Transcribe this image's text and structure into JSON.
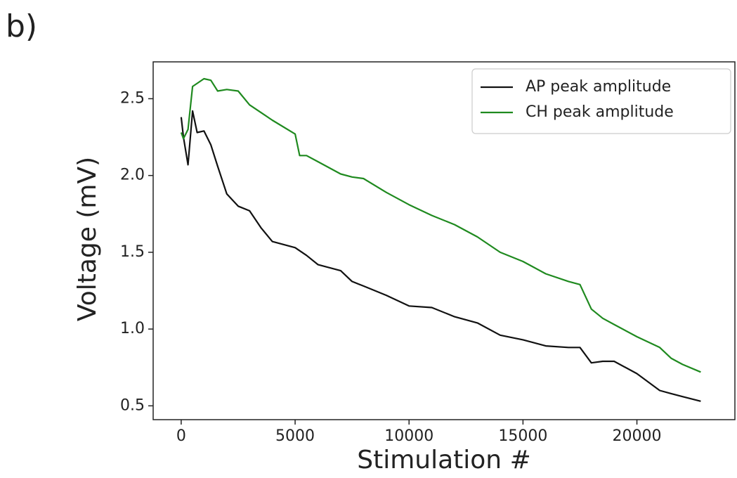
{
  "chart_data": {
    "type": "line",
    "panel_label": "b)",
    "x_label": "Stimulation #",
    "y_label": "Voltage (mV)",
    "x": [
      0,
      100,
      300,
      500,
      700,
      1000,
      1300,
      1600,
      2000,
      2500,
      3000,
      3500,
      4000,
      5000,
      5200,
      5500,
      6000,
      7000,
      7500,
      8000,
      9000,
      10000,
      11000,
      12000,
      13000,
      14000,
      15000,
      16000,
      17000,
      17500,
      18000,
      18500,
      19000,
      20000,
      21000,
      21500,
      22000,
      22800
    ],
    "series": [
      {
        "name": "AP peak amplitude",
        "color": "#111111",
        "values": [
          2.38,
          2.25,
          2.07,
          2.42,
          2.28,
          2.29,
          2.2,
          2.06,
          1.88,
          1.8,
          1.77,
          1.66,
          1.57,
          1.53,
          1.51,
          1.48,
          1.42,
          1.38,
          1.31,
          1.28,
          1.22,
          1.15,
          1.14,
          1.08,
          1.04,
          0.96,
          0.93,
          0.89,
          0.88,
          0.88,
          0.78,
          0.79,
          0.79,
          0.71,
          0.6,
          0.58,
          0.56,
          0.53
        ]
      },
      {
        "name": "CH peak amplitude",
        "color": "#1f8a1f",
        "values": [
          2.28,
          2.24,
          2.3,
          2.58,
          2.6,
          2.63,
          2.62,
          2.55,
          2.56,
          2.55,
          2.46,
          2.41,
          2.36,
          2.27,
          2.13,
          2.13,
          2.09,
          2.01,
          1.99,
          1.98,
          1.89,
          1.81,
          1.74,
          1.68,
          1.6,
          1.5,
          1.44,
          1.36,
          1.31,
          1.29,
          1.13,
          1.07,
          1.03,
          0.95,
          0.88,
          0.81,
          0.77,
          0.72
        ]
      }
    ],
    "xlim": [
      -1230,
      24300
    ],
    "ylim": [
      0.41,
      2.74
    ],
    "xticks": [
      0,
      5000,
      10000,
      15000,
      20000
    ],
    "yticks": [
      0.5,
      {
        "value": 1.0,
        "label": "1.0"
      },
      1.5,
      {
        "value": 2.0,
        "label": "2.0"
      },
      2.5
    ],
    "grid": false,
    "legend": "upper right"
  }
}
